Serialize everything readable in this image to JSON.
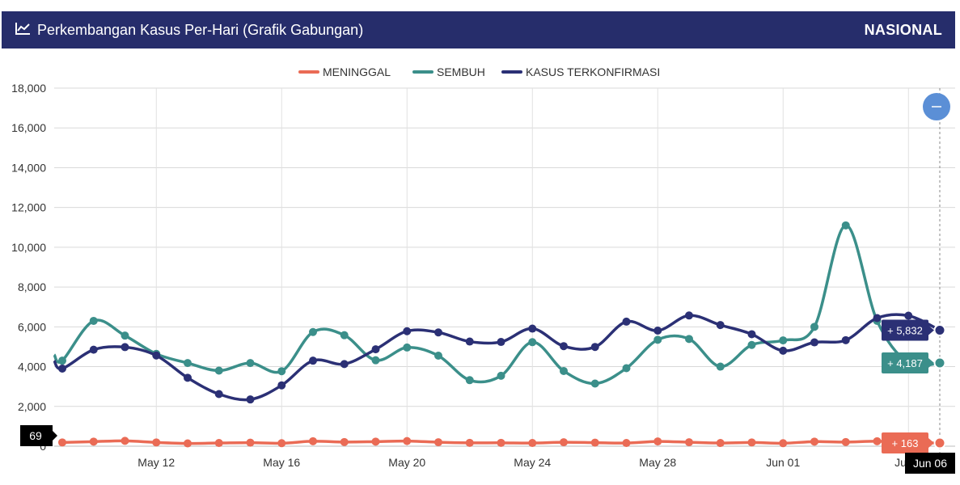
{
  "header": {
    "title": "Perkembangan Kasus Per-Hari (Grafik Gabungan)",
    "region": "NASIONAL",
    "icon": "line-chart-icon"
  },
  "zoom_button": {
    "icon": "minus-icon",
    "color": "#5b8fd6"
  },
  "chart_data": {
    "type": "line",
    "title": "",
    "xlabel": "",
    "ylabel": "",
    "ylim": [
      0,
      18000
    ],
    "yticks": [
      "0",
      "2,000",
      "4,000",
      "6,000",
      "8,000",
      "10,000",
      "12,000",
      "14,000",
      "16,000",
      "18,000"
    ],
    "xticks": [
      "May 12",
      "May 16",
      "May 20",
      "May 24",
      "May 28",
      "Jun 01",
      "Jun 0"
    ],
    "x": [
      "2021-05-09",
      "2021-05-10",
      "2021-05-11",
      "2021-05-12",
      "2021-05-13",
      "2021-05-14",
      "2021-05-15",
      "2021-05-16",
      "2021-05-17",
      "2021-05-18",
      "2021-05-19",
      "2021-05-20",
      "2021-05-21",
      "2021-05-22",
      "2021-05-23",
      "2021-05-24",
      "2021-05-25",
      "2021-05-26",
      "2021-05-27",
      "2021-05-28",
      "2021-05-29",
      "2021-05-30",
      "2021-05-31",
      "2021-06-01",
      "2021-06-02",
      "2021-06-03",
      "2021-06-04",
      "2021-06-05",
      "2021-06-06"
    ],
    "grid": true,
    "legend_position": "top-center",
    "series": [
      {
        "name": "MENINGGAL",
        "color": "#ea6b55",
        "values": [
          190,
          230,
          270,
          190,
          140,
          160,
          180,
          150,
          250,
          210,
          230,
          260,
          200,
          170,
          170,
          160,
          200,
          180,
          160,
          240,
          200,
          160,
          190,
          150,
          230,
          210,
          250,
          180,
          163
        ]
      },
      {
        "name": "SEMBUH",
        "color": "#3b8f8a",
        "values": [
          4300,
          6300,
          5560,
          4640,
          4180,
          3800,
          4180,
          3770,
          5740,
          5580,
          4320,
          4960,
          4550,
          3320,
          3540,
          5230,
          3780,
          3150,
          3920,
          5350,
          5390,
          4000,
          5090,
          5320,
          6000,
          11100,
          6300,
          4187,
          4187
        ]
      },
      {
        "name": "KASUS TERKONFIRMASI",
        "color": "#2b3075",
        "values": [
          3900,
          4850,
          4980,
          4560,
          3440,
          2620,
          2350,
          3060,
          4300,
          4130,
          4870,
          5780,
          5720,
          5260,
          5240,
          5910,
          5030,
          4990,
          6260,
          5810,
          6570,
          6090,
          5630,
          4800,
          5220,
          5330,
          6440,
          6560,
          5832
        ]
      }
    ],
    "edge_start": {
      "SEMBUH": 4600,
      "KASUS TERKONFIRMASI": 4300
    },
    "annotations": {
      "crosshair_x_label": "Jun 06",
      "crosshair_y_label": "69",
      "tooltips": [
        {
          "series": "KASUS TERKONFIRMASI",
          "text": "+ 5,832",
          "color": "#2b3075"
        },
        {
          "series": "SEMBUH",
          "text": "+ 4,187",
          "color": "#3b8f8a"
        },
        {
          "series": "MENINGGAL",
          "text": "+ 163",
          "color": "#ea6b55"
        }
      ]
    }
  }
}
